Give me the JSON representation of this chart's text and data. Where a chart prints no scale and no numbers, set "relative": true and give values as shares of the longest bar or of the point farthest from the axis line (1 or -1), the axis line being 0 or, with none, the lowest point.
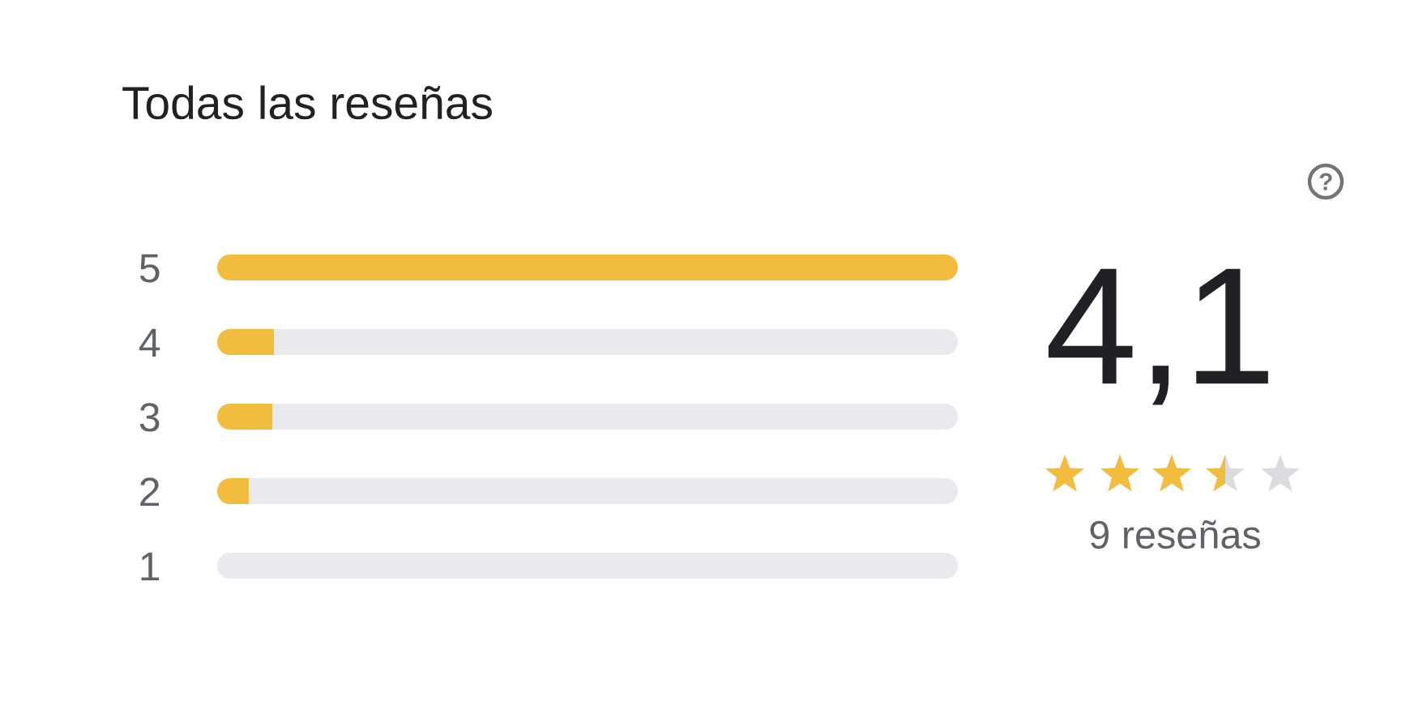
{
  "chart_data": {
    "type": "bar",
    "orientation": "horizontal",
    "stacked": true,
    "relative": true,
    "title": "Todas las reseñas",
    "categories": [
      "5",
      "4",
      "3",
      "2",
      "1"
    ],
    "series": [
      {
        "color": "#f2bc3f",
        "values": [
          1,
          0.077,
          0.075,
          0.043,
          0
        ]
      },
      {
        "color": "#e8eaed",
        "values": [
          0,
          0.923,
          0.925,
          0.957,
          1
        ]
      }
    ],
    "tick_labels": "y",
    "annotations": [
      "4,1",
      "9 reseñas"
    ]
  }
}
